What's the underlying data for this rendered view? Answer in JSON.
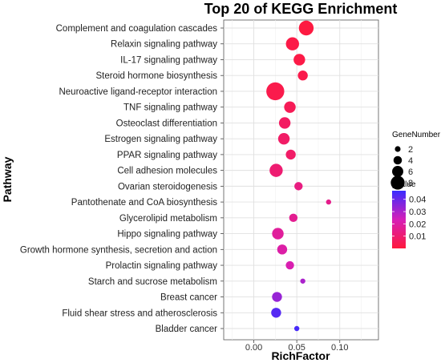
{
  "chart_data": {
    "type": "scatter",
    "title": "Top 20 of KEGG Enrichment",
    "xlabel": "RichFactor",
    "ylabel": "Pathway",
    "xlim": [
      -0.035,
      0.145
    ],
    "xticks": [
      {
        "value": 0.0,
        "label": "0.00"
      },
      {
        "value": 0.05,
        "label": "0.05"
      },
      {
        "value": 0.1,
        "label": "0.10"
      }
    ],
    "grid": true,
    "points": [
      {
        "pathway": "Complement and coagulation cascades",
        "x": 0.061,
        "gene_number": 7,
        "pvalue": 0.001
      },
      {
        "pathway": "Relaxin signaling pathway",
        "x": 0.045,
        "gene_number": 6,
        "pvalue": 0.002
      },
      {
        "pathway": "IL-17 signaling pathway",
        "x": 0.053,
        "gene_number": 5,
        "pvalue": 0.002
      },
      {
        "pathway": "Steroid hormone biosynthesis",
        "x": 0.057,
        "gene_number": 4,
        "pvalue": 0.003
      },
      {
        "pathway": "Neuroactive ligand-receptor interaction",
        "x": 0.025,
        "gene_number": 9,
        "pvalue": 0.003
      },
      {
        "pathway": "TNF signaling pathway",
        "x": 0.042,
        "gene_number": 5,
        "pvalue": 0.005
      },
      {
        "pathway": "Osteoclast differentiation",
        "x": 0.036,
        "gene_number": 5,
        "pvalue": 0.007
      },
      {
        "pathway": "Estrogen signaling pathway",
        "x": 0.035,
        "gene_number": 5,
        "pvalue": 0.008
      },
      {
        "pathway": "PPAR signaling pathway",
        "x": 0.043,
        "gene_number": 4,
        "pvalue": 0.008
      },
      {
        "pathway": "Cell adhesion molecules",
        "x": 0.026,
        "gene_number": 6,
        "pvalue": 0.01
      },
      {
        "pathway": "Ovarian steroidogenesis",
        "x": 0.052,
        "gene_number": 3,
        "pvalue": 0.013
      },
      {
        "pathway": "Pantothenate and CoA biosynthesis",
        "x": 0.087,
        "gene_number": 1,
        "pvalue": 0.015
      },
      {
        "pathway": "Glycerolipid metabolism",
        "x": 0.046,
        "gene_number": 3,
        "pvalue": 0.016
      },
      {
        "pathway": "Hippo signaling pathway",
        "x": 0.028,
        "gene_number": 5,
        "pvalue": 0.018
      },
      {
        "pathway": "Growth hormone synthesis, secretion and action",
        "x": 0.033,
        "gene_number": 4,
        "pvalue": 0.02
      },
      {
        "pathway": "Prolactin signaling pathway",
        "x": 0.042,
        "gene_number": 3,
        "pvalue": 0.022
      },
      {
        "pathway": "Starch and sucrose metabolism",
        "x": 0.057,
        "gene_number": 1,
        "pvalue": 0.03
      },
      {
        "pathway": "Breast cancer",
        "x": 0.027,
        "gene_number": 4,
        "pvalue": 0.033
      },
      {
        "pathway": "Fluid shear stress and atherosclerosis",
        "x": 0.026,
        "gene_number": 4,
        "pvalue": 0.043
      },
      {
        "pathway": "Bladder cancer",
        "x": 0.05,
        "gene_number": 1,
        "pvalue": 0.045
      }
    ],
    "size_legend": {
      "title": "GeneNumber",
      "values": [
        2,
        4,
        6,
        8
      ]
    },
    "color_legend": {
      "title": "pvalue",
      "range": [
        0.0,
        0.047
      ],
      "ticks": [
        {
          "value": 0.04,
          "label": "0.04"
        },
        {
          "value": 0.03,
          "label": "0.03"
        },
        {
          "value": 0.02,
          "label": "0.02"
        },
        {
          "value": 0.01,
          "label": "0.01"
        }
      ],
      "low_color": "#ff1a3c",
      "mid_color": "#d61fb8",
      "high_color": "#3a2cff"
    },
    "legend_position": "right"
  }
}
